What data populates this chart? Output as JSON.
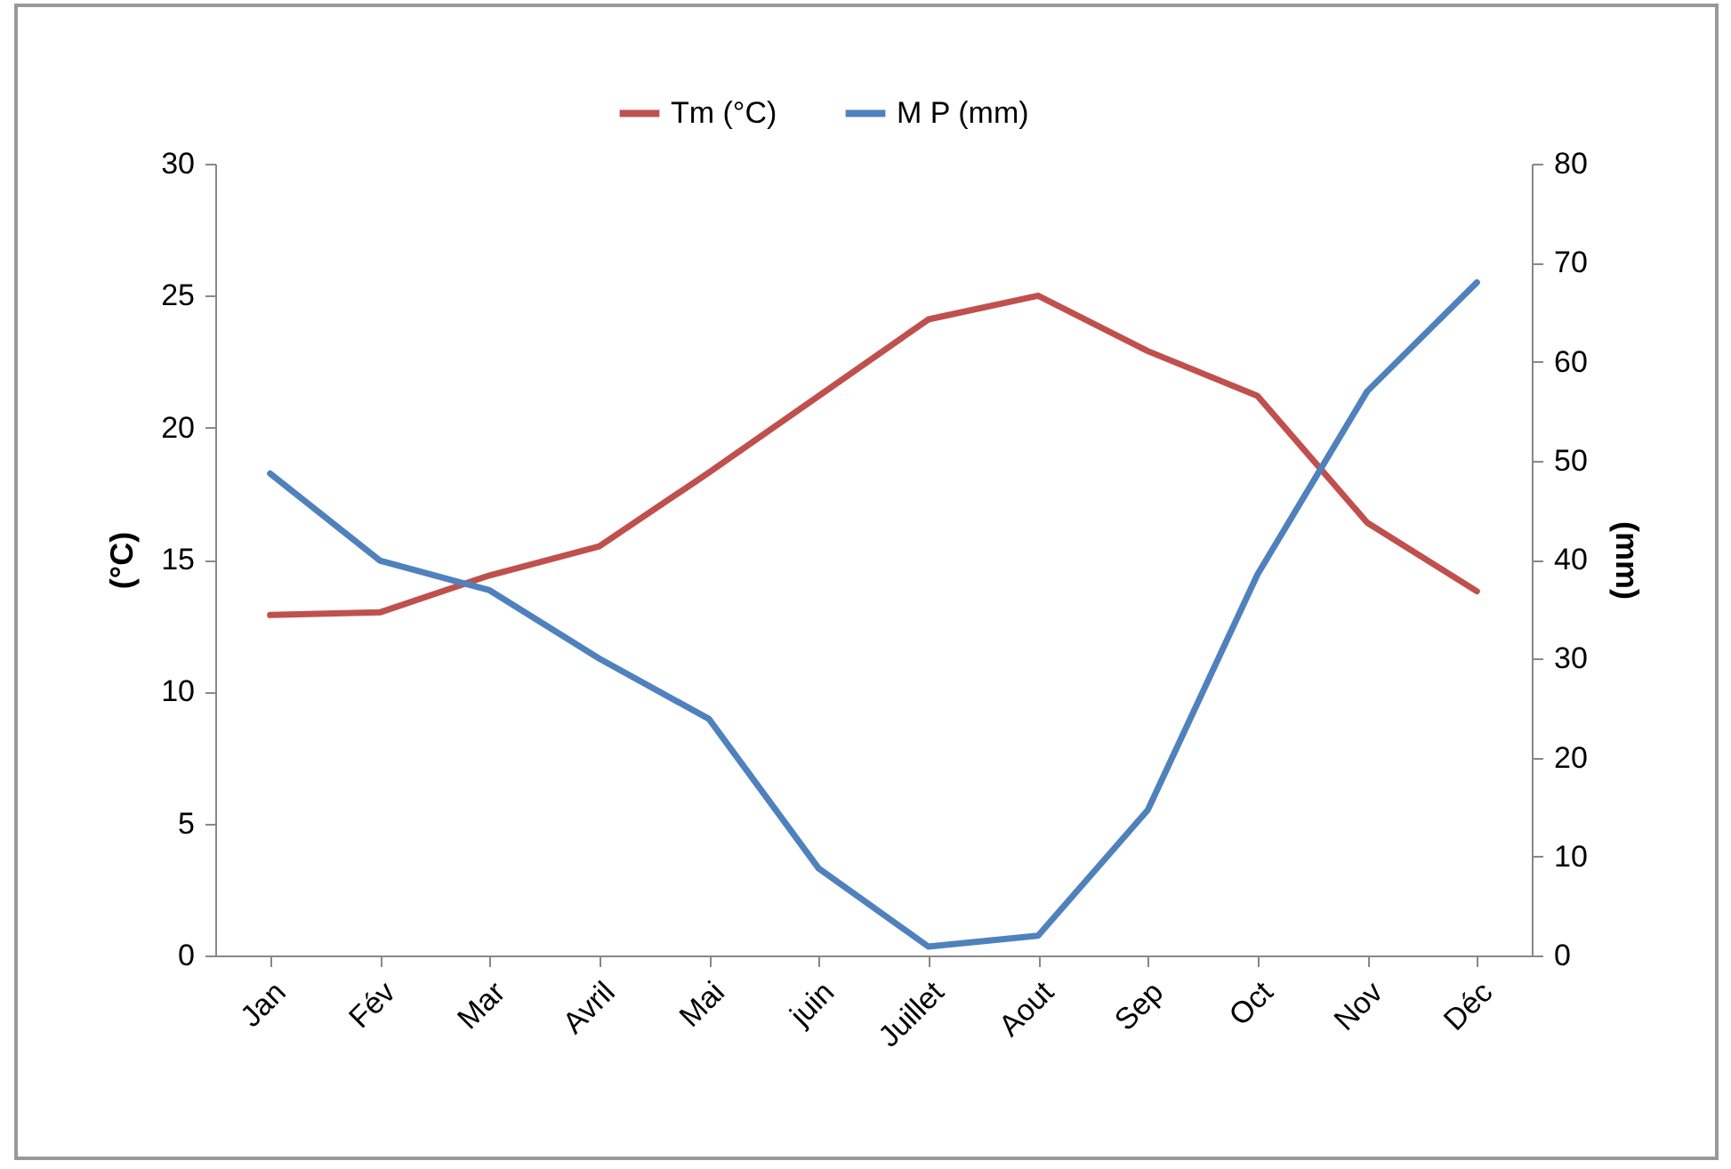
{
  "chart_data": {
    "type": "line",
    "categories": [
      "Jan",
      "Fév",
      "Mar",
      "Avril",
      "Mai",
      "juin",
      "Juillet",
      "Aout",
      "Sep",
      "Oct",
      "Nov",
      "Déc"
    ],
    "ylabel": "(°C)",
    "y2label": "(mm)",
    "ylim": [
      0,
      30
    ],
    "yticks": [
      0,
      5,
      10,
      15,
      20,
      25,
      30
    ],
    "y2lim": [
      0,
      80
    ],
    "y2ticks": [
      0,
      10,
      20,
      30,
      40,
      50,
      60,
      70,
      80
    ],
    "series": [
      {
        "name": "Tm (°C)",
        "color": "#c0504d",
        "values": [
          12.9,
          13.0,
          14.4,
          15.5,
          18.3,
          21.2,
          24.1,
          25.0,
          22.9,
          21.2,
          16.4,
          13.8
        ]
      },
      {
        "name": "M P (mm)",
        "color": "#4f81bd",
        "axis": "y2",
        "values": [
          48.7,
          39.9,
          36.9,
          30.0,
          23.9,
          8.8,
          0.9,
          2.0,
          14.7,
          38.5,
          57.0,
          68.0
        ]
      }
    ],
    "legend": "top",
    "grid": false,
    "marker": "none",
    "line_style": "solid"
  }
}
